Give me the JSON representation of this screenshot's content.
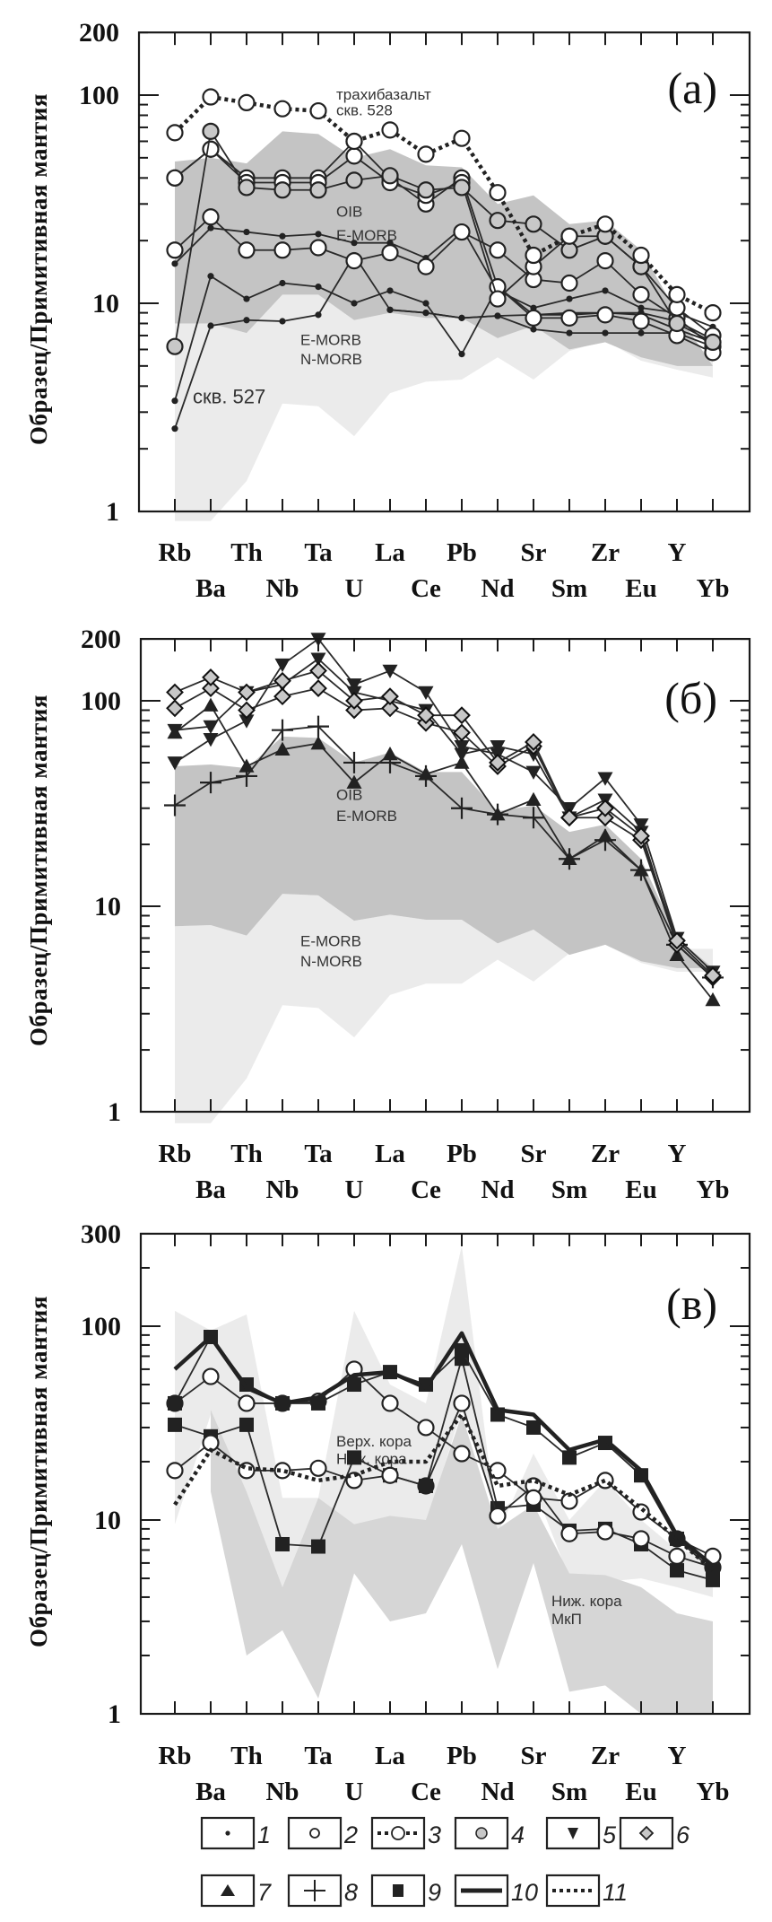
{
  "chart_data": [
    {
      "type": "line",
      "panel_label": "(а)",
      "ylabel": "Образец/Примитивная мантия",
      "yscale": "log",
      "ylim": [
        1,
        200
      ],
      "yticks": [
        "1",
        "10",
        "100",
        "200"
      ],
      "yticks_values": [
        1,
        10,
        100,
        200
      ],
      "categories": [
        "Rb",
        "Ba",
        "Th",
        "Nb",
        "Ta",
        "U",
        "La",
        "Ce",
        "Pb",
        "Nd",
        "Sr",
        "Sm",
        "Zr",
        "Eu",
        "Y",
        "Yb"
      ],
      "annotations": [
        {
          "text": "трахибазальт",
          "cat": "U",
          "value": 95,
          "size": "small"
        },
        {
          "text": "скв. 528",
          "cat": "U",
          "value": 80,
          "size": "small"
        },
        {
          "text": "OIB",
          "cat": "U",
          "value": 26,
          "size": "small"
        },
        {
          "text": "E-MORB",
          "cat": "U",
          "value": 20,
          "size": "small"
        },
        {
          "text": "E-MORB",
          "cat": "Ta",
          "value": 6.3,
          "size": "small"
        },
        {
          "text": "N-MORB",
          "cat": "Ta",
          "value": 5.1,
          "size": "small"
        },
        {
          "text": "скв. 527",
          "cat": "Ba",
          "value": 3.3,
          "size": "large"
        }
      ],
      "bands": [
        {
          "name": "E-MORB/N-MORB field",
          "color": "#ebebeb",
          "upper": [
            8,
            8,
            7.2,
            11,
            11,
            8.3,
            9,
            8.5,
            8.5,
            6.8,
            7.8,
            6,
            6.5,
            5.5,
            5,
            6.3
          ],
          "lower": [
            0.9,
            0.9,
            1.4,
            3.3,
            3.2,
            2.3,
            3.7,
            4.2,
            4.3,
            5.5,
            4.3,
            5.9,
            6.6,
            5.3,
            4.8,
            4.4
          ]
        },
        {
          "name": "OIB/E-MORB field",
          "color": "#c4c4c4",
          "upper": [
            48,
            50,
            47,
            67,
            65,
            50,
            55,
            46,
            45,
            30,
            33,
            24,
            25,
            18,
            9,
            5
          ],
          "lower": [
            8,
            8,
            7.2,
            11,
            11,
            8.3,
            9,
            8.5,
            8.5,
            6.8,
            7.8,
            6,
            6.5,
            5.5,
            5,
            5
          ]
        }
      ],
      "series": [
        {
          "name": "тип 1",
          "legend": "1",
          "marker": "dot",
          "line": "solid",
          "values": [
            2.5,
            7.8,
            8.3,
            8.2,
            8.8,
            17,
            9.3,
            9,
            8.5,
            8.7,
            8.8,
            8.8,
            9,
            8.8,
            7.5,
            6.5
          ]
        },
        {
          "name": "тип 1",
          "legend": "1",
          "marker": "dot",
          "line": "solid",
          "values": [
            3.4,
            13.5,
            10.5,
            12.5,
            12,
            10,
            11.5,
            10,
            5.7,
            12,
            8.8,
            9,
            9,
            9,
            8.2,
            6.7
          ]
        },
        {
          "name": "тип 1",
          "legend": "1",
          "marker": "dot",
          "line": "solid",
          "values": [
            15.5,
            23,
            22,
            21,
            21.5,
            19.5,
            19.5,
            16.5,
            23,
            11.5,
            9.5,
            10.5,
            11.5,
            9.5,
            9,
            7.7
          ]
        },
        {
          "name": "тип 1",
          "legend": "1",
          "marker": "dot",
          "line": "solid",
          "values": [
            null,
            null,
            null,
            null,
            null,
            null,
            9.3,
            9,
            8.5,
            8.7,
            7.5,
            7.2,
            7.2,
            7.2,
            7.2,
            6.2
          ]
        },
        {
          "name": "тип 2",
          "legend": "2",
          "marker": "open-circle",
          "line": "solid",
          "values": [
            18,
            26,
            18,
            18,
            18.5,
            16,
            17.5,
            15,
            22,
            18,
            13,
            12.5,
            16,
            11,
            8.5,
            6.2
          ]
        },
        {
          "name": "тип 2",
          "legend": "2",
          "marker": "open-circle",
          "line": "solid",
          "values": [
            40,
            55,
            40,
            40,
            40,
            60,
            40,
            30,
            40,
            12,
            8.5,
            8.5,
            8.8,
            8.2,
            7,
            5.8
          ]
        },
        {
          "name": "тип 2",
          "legend": "2",
          "marker": "open-circle",
          "line": "solid",
          "values": [
            40,
            55,
            38,
            38,
            38,
            51,
            38,
            33,
            38,
            10.5,
            15,
            21,
            21,
            15,
            9.5,
            7
          ]
        },
        {
          "name": "тип 4",
          "legend": "4",
          "marker": "grey-circle",
          "line": "solid",
          "values": [
            6.2,
            67,
            36,
            35,
            35,
            39,
            41,
            35,
            36,
            25,
            24,
            18,
            21,
            15,
            8,
            6.5
          ]
        },
        {
          "name": "тип 3 (трахибазальт скв. 528)",
          "legend": "3",
          "marker": "open-circle",
          "line": "dotted",
          "values": [
            66,
            98,
            92,
            86,
            84,
            60,
            68,
            52,
            62,
            34,
            17,
            21,
            24,
            17,
            11,
            9
          ]
        }
      ]
    },
    {
      "type": "line",
      "panel_label": "(б)",
      "ylabel": "Образец/Примитивная мантия",
      "yscale": "log",
      "ylim": [
        1,
        200
      ],
      "yticks": [
        "1",
        "10",
        "100",
        "200"
      ],
      "yticks_values": [
        1,
        10,
        100,
        200
      ],
      "categories": [
        "Rb",
        "Ba",
        "Th",
        "Nb",
        "Ta",
        "U",
        "La",
        "Ce",
        "Pb",
        "Nd",
        "Sr",
        "Sm",
        "Zr",
        "Eu",
        "Y",
        "Yb"
      ],
      "annotations": [
        {
          "text": "OIB",
          "cat": "U",
          "value": 33,
          "size": "small"
        },
        {
          "text": "E-MORB",
          "cat": "U",
          "value": 26,
          "size": "small"
        },
        {
          "text": "E-MORB",
          "cat": "Ta",
          "value": 6.4,
          "size": "small"
        },
        {
          "text": "N-MORB",
          "cat": "Ta",
          "value": 5.1,
          "size": "small"
        }
      ],
      "bands": [
        {
          "name": "E-MORB/N-MORB field",
          "color": "#ebebeb",
          "upper": [
            8,
            8.1,
            7.2,
            11.5,
            11.3,
            8.5,
            9.1,
            8.6,
            8.6,
            6.6,
            7.7,
            5.8,
            6.5,
            5.4,
            6.2,
            6.2
          ],
          "lower": [
            0.88,
            0.88,
            1.45,
            3.3,
            3.2,
            2.3,
            3.7,
            4.2,
            4.2,
            5.5,
            4.3,
            5.9,
            6.5,
            5.3,
            4.8,
            4.8
          ]
        },
        {
          "name": "OIB/E-MORB field",
          "color": "#c4c4c4",
          "upper": [
            48,
            49,
            47,
            67,
            66,
            50,
            56,
            45,
            45,
            29,
            31,
            23,
            25,
            17,
            7,
            5
          ],
          "lower": [
            8,
            8.1,
            7.2,
            11.5,
            11.3,
            8.5,
            9.1,
            8.6,
            8.6,
            6.6,
            7.7,
            5.8,
            6.5,
            5.4,
            5,
            5
          ]
        }
      ],
      "series": [
        {
          "name": "тип 8",
          "legend": "8",
          "marker": "plus",
          "line": "solid",
          "values": [
            31,
            40,
            43,
            72,
            75,
            50,
            50,
            43,
            30,
            28,
            27,
            17,
            21,
            15,
            6.5,
            4.5
          ]
        },
        {
          "name": "тип 7",
          "legend": "7",
          "marker": "triangle-up",
          "line": "solid",
          "values": [
            70,
            95,
            48,
            58,
            62,
            40,
            55,
            44,
            50,
            28,
            33,
            17,
            22,
            15,
            5.8,
            3.5
          ]
        },
        {
          "name": "тип 5",
          "legend": "5",
          "marker": "triangle-down",
          "line": "solid",
          "values": [
            50,
            65,
            80,
            150,
            200,
            120,
            140,
            110,
            60,
            55,
            45,
            30,
            42,
            25,
            7,
            4.8
          ]
        },
        {
          "name": "тип 5",
          "legend": "5",
          "marker": "triangle-down",
          "line": "solid",
          "values": [
            72,
            75,
            110,
            120,
            160,
            110,
            100,
            90,
            55,
            60,
            55,
            27,
            33,
            23,
            6.5,
            4.5
          ]
        },
        {
          "name": "тип 6",
          "legend": "6",
          "marker": "diamond",
          "line": "solid",
          "values": [
            92,
            115,
            90,
            105,
            115,
            90,
            92,
            78,
            70,
            48,
            60,
            27,
            27,
            21,
            6.5,
            4.5
          ]
        },
        {
          "name": "тип 6",
          "legend": "6",
          "marker": "diamond",
          "line": "solid",
          "values": [
            110,
            130,
            110,
            125,
            140,
            100,
            105,
            85,
            85,
            50,
            63,
            27,
            30,
            22,
            6.8,
            4.6
          ]
        }
      ]
    },
    {
      "type": "line",
      "panel_label": "(в)",
      "ylabel": "Образец/Примитивная мантия",
      "yscale": "log",
      "ylim": [
        1,
        300
      ],
      "yticks": [
        "1",
        "10",
        "100",
        "300"
      ],
      "yticks_values": [
        1,
        10,
        100,
        300
      ],
      "categories": [
        "Rb",
        "Ba",
        "Th",
        "Nb",
        "Ta",
        "U",
        "La",
        "Ce",
        "Pb",
        "Nd",
        "Sr",
        "Sm",
        "Zr",
        "Eu",
        "Y",
        "Yb"
      ],
      "annotations": [
        {
          "text": "Верх. кора",
          "cat": "U",
          "value": 24,
          "size": "small"
        },
        {
          "text": "Ниж. кора",
          "cat": "U",
          "value": 19.5,
          "size": "small"
        },
        {
          "text": "Ниж. кора",
          "cat": "Sm",
          "value": 3.6,
          "size": "small"
        },
        {
          "text": "МкП",
          "cat": "Sm",
          "value": 2.9,
          "size": "small"
        }
      ],
      "bands": [
        {
          "name": "Верх. кора / Ниж. кора field",
          "color": "#ebebeb",
          "upper": [
            120,
            95,
            115,
            13,
            13,
            120,
            50,
            40,
            260,
            8.5,
            22,
            10,
            16,
            10,
            7,
            6.5
          ],
          "lower": [
            9.5,
            35,
            14,
            4.5,
            13,
            9.3,
            10.2,
            9.5,
            37,
            11,
            15,
            5,
            4.8,
            5,
            4.5,
            4
          ]
        },
        {
          "name": "Ниж. кора МкП field",
          "color": "#d6d6d6",
          "upper": [
            null,
            37,
            14,
            4.5,
            13,
            9.5,
            10.5,
            10,
            35,
            9,
            12,
            5.3,
            5.2,
            4.5,
            3.3,
            3
          ],
          "lower": [
            null,
            14,
            2,
            2.7,
            1.2,
            5.3,
            3,
            3.3,
            7.5,
            1.7,
            6,
            1.3,
            1.4,
            1,
            1,
            1
          ]
        }
      ],
      "series": [
        {
          "name": "тип 9",
          "legend": "9",
          "marker": "square",
          "line": "solid",
          "values": [
            31,
            27,
            31,
            7.5,
            7.3,
            21,
            17,
            15,
            68,
            11.5,
            12,
            8.8,
            9,
            7.5,
            5.5,
            4.9
          ]
        },
        {
          "name": "тип 2",
          "legend": "2",
          "marker": "open-circle",
          "line": "solid",
          "values": [
            18,
            25,
            18,
            18,
            18.5,
            16,
            17,
            15,
            40,
            10.5,
            15,
            8.5,
            8.7,
            8,
            6.5,
            5.7
          ]
        },
        {
          "name": "тип 2",
          "legend": "2",
          "marker": "open-circle",
          "line": "solid",
          "values": [
            40,
            55,
            40,
            40,
            41,
            60,
            40,
            30,
            22,
            18,
            13,
            12.5,
            16,
            11,
            8,
            6.5
          ]
        },
        {
          "name": "тип 9",
          "legend": "9",
          "marker": "square",
          "line": "solid",
          "values": [
            40,
            88,
            50,
            40,
            40,
            50,
            58,
            50,
            75,
            35,
            30,
            21,
            25,
            17,
            8,
            5.5
          ]
        },
        {
          "name": "тип 11",
          "legend": "11",
          "marker": "none",
          "line": "dotted",
          "values": [
            12,
            23,
            18.5,
            18,
            16,
            17,
            20,
            20,
            35,
            15,
            16,
            13.5,
            16,
            11.5,
            8,
            5.5
          ]
        },
        {
          "name": "тип 10",
          "legend": "10",
          "marker": "none",
          "line": "thick",
          "values": [
            60,
            88,
            48,
            40,
            43,
            56,
            58,
            48,
            92,
            37,
            35,
            23,
            26,
            18,
            8.3,
            5.8
          ]
        },
        {
          "name": "тип 1",
          "legend": "1",
          "marker": "big-dot",
          "line": "none",
          "values": [
            40,
            null,
            null,
            40,
            null,
            null,
            null,
            15,
            null,
            null,
            null,
            null,
            null,
            null,
            null,
            null
          ]
        }
      ]
    }
  ],
  "legend": {
    "items": [
      {
        "num": "1",
        "marker": "dot",
        "line": "none"
      },
      {
        "num": "2",
        "marker": "open-circle",
        "line": "none"
      },
      {
        "num": "3",
        "marker": "open-circle",
        "line": "dotted"
      },
      {
        "num": "4",
        "marker": "grey-circle",
        "line": "none"
      },
      {
        "num": "5",
        "marker": "triangle-down",
        "line": "none"
      },
      {
        "num": "6",
        "marker": "diamond",
        "line": "none"
      },
      {
        "num": "7",
        "marker": "triangle-up",
        "line": "none"
      },
      {
        "num": "8",
        "marker": "plus",
        "line": "none"
      },
      {
        "num": "9",
        "marker": "square",
        "line": "none"
      },
      {
        "num": "10",
        "marker": "none",
        "line": "thick"
      },
      {
        "num": "11",
        "marker": "none",
        "line": "dotted"
      }
    ]
  }
}
